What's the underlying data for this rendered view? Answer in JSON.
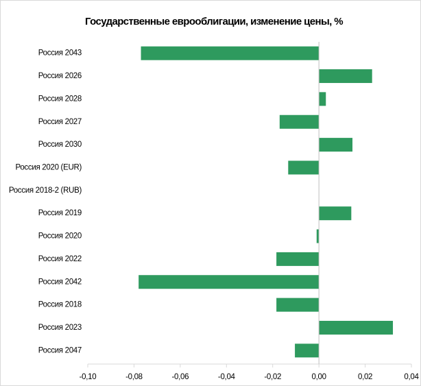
{
  "chart_data": {
    "type": "bar",
    "orientation": "horizontal",
    "title": "Государственные еврооблигации, изменение цены, %",
    "categories": [
      "Россия 2043",
      "Россия 2026",
      "Россия 2028",
      "Россия 2027",
      "Россия 2030",
      "Россия 2020 (EUR)",
      "Россия 2018-2 (RUB)",
      "Россия 2019",
      "Россия 2020",
      "Россия 2022",
      "Россия 2042",
      "Россия 2018",
      "Россия 2023",
      "Россия 2047"
    ],
    "values": [
      -0.077,
      0.023,
      0.003,
      -0.017,
      0.0145,
      -0.0133,
      0,
      0.014,
      -0.001,
      -0.0184,
      -0.078,
      -0.0184,
      0.032,
      -0.0104
    ],
    "color": "#2e9a5e",
    "xlim": [
      -0.1,
      0.04
    ],
    "xticks": [
      {
        "value": -0.1,
        "label": "-0,10"
      },
      {
        "value": -0.08,
        "label": "-0,08"
      },
      {
        "value": -0.06,
        "label": "-0,06"
      },
      {
        "value": -0.04,
        "label": "-0,04"
      },
      {
        "value": -0.02,
        "label": "-0,02"
      },
      {
        "value": 0,
        "label": "0,00"
      },
      {
        "value": 0.02,
        "label": "0,02"
      },
      {
        "value": 0.04,
        "label": "0,04"
      }
    ],
    "grid": false
  }
}
